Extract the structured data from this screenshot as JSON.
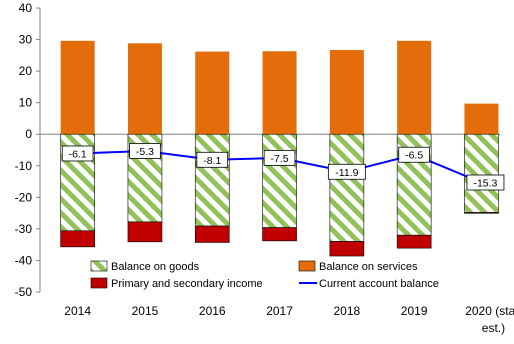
{
  "colors": {
    "goods_stripe": "#92c05a",
    "services": "#e46c0a",
    "primary_secondary": "#c00000",
    "current_account": "#0000ff",
    "axis": "#808080"
  },
  "chart_data": {
    "type": "bar",
    "categories": [
      "2014",
      "2015",
      "2016",
      "2017",
      "2018",
      "2019",
      "2020 (staff est.)"
    ],
    "category_labels": [
      [
        "2014"
      ],
      [
        "2015"
      ],
      [
        "2016"
      ],
      [
        "2017"
      ],
      [
        "2018"
      ],
      [
        "2019"
      ],
      [
        "2020 (staff",
        "est.)"
      ]
    ],
    "ylim": [
      -50,
      40
    ],
    "yticks": [
      -50,
      -40,
      -30,
      -20,
      -10,
      0,
      10,
      20,
      30,
      40
    ],
    "stacked": true,
    "series": [
      {
        "name": "Balance on goods",
        "kind": "bar",
        "values": [
          -30.6,
          -27.8,
          -29.1,
          -29.6,
          -34.0,
          -32.0,
          -24.8
        ]
      },
      {
        "name": "Balance on services",
        "kind": "bar",
        "values": [
          29.6,
          28.8,
          26.2,
          26.3,
          26.7,
          29.6,
          9.7
        ]
      },
      {
        "name": "Primary and secondary income",
        "kind": "bar",
        "values": [
          -5.1,
          -6.3,
          -5.2,
          -4.2,
          -4.6,
          -4.1,
          -0.2
        ]
      },
      {
        "name": "Current account balance",
        "kind": "line",
        "values": [
          -6.1,
          -5.3,
          -8.1,
          -7.5,
          -11.9,
          -6.5,
          -15.3
        ]
      }
    ],
    "data_labels": [
      "-6.1",
      "-5.3",
      "-8.1",
      "-7.5",
      "-11.9",
      "-6.5",
      "-15.3"
    ],
    "legend": {
      "placement": "bottom-center",
      "entries": [
        "Balance on goods",
        "Balance on services",
        "Primary and secondary income",
        "Current account balance"
      ]
    },
    "grid": false
  }
}
